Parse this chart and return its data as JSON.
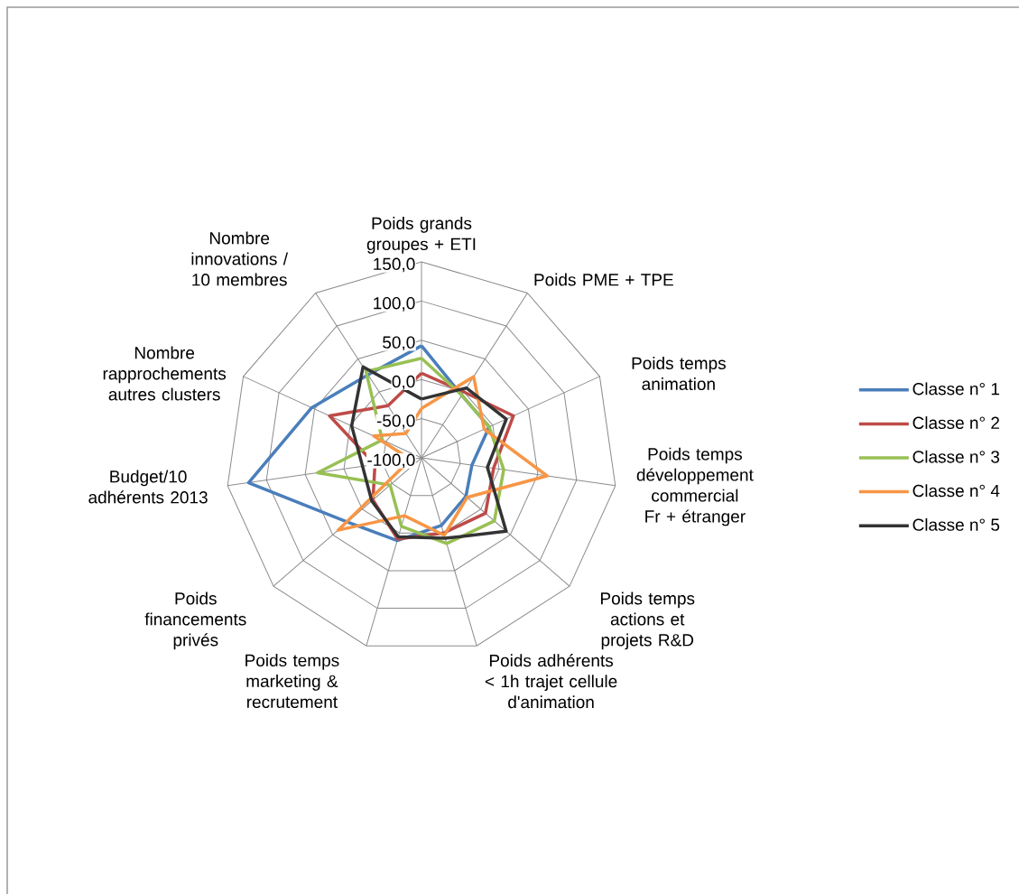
{
  "chart_data": {
    "type": "radar",
    "categories": [
      "Poids grands groupes + ETI",
      "Poids PME + TPE",
      "Poids temps animation",
      "Poids temps développement commercial Fr + étranger",
      "Poids temps actions et projets R&D",
      "Poids adhérents < 1h trajet cellule d'animation",
      "Poids temps marketing & recrutement",
      "Poids financements privés",
      "Budget/10 adhérents 2013",
      "Nombre rapprochements autres clusters",
      "Nombre innovations / 10 membres"
    ],
    "ylim": [
      -100,
      150
    ],
    "yticks": [
      {
        "value": -100,
        "label": "-100,0"
      },
      {
        "value": -50,
        "label": "-50,0"
      },
      {
        "value": 0,
        "label": "0,0"
      },
      {
        "value": 50,
        "label": "50,0"
      },
      {
        "value": 100,
        "label": "100,0"
      },
      {
        "value": 150,
        "label": "150,0"
      }
    ],
    "grid": true,
    "legend": "right",
    "series": [
      {
        "name": "Classe n° 1",
        "color": "#4a7ebb",
        "values": [
          43,
          -5,
          -5,
          -35,
          -25,
          -10,
          10,
          25,
          123,
          54,
          26
        ]
      },
      {
        "name": "Classe n° 2",
        "color": "#be4b48",
        "values": [
          8,
          0,
          29,
          -7,
          8,
          0,
          8,
          -18,
          -40,
          29,
          -21
        ]
      },
      {
        "name": "Classe n° 3",
        "color": "#98c054",
        "values": [
          27,
          -5,
          -5,
          6,
          23,
          14,
          -9,
          -47,
          34,
          -45,
          31
        ]
      },
      {
        "name": "Classe n° 4",
        "color": "#f79646",
        "values": [
          -37,
          23,
          -12,
          62,
          -23,
          3,
          -23,
          41,
          -86,
          -33,
          -63
        ]
      },
      {
        "name": "Classe n° 5",
        "color": "#333333",
        "values": [
          -25,
          6,
          19,
          -15,
          43,
          7,
          5,
          -16,
          -24,
          -2,
          38
        ]
      }
    ]
  }
}
